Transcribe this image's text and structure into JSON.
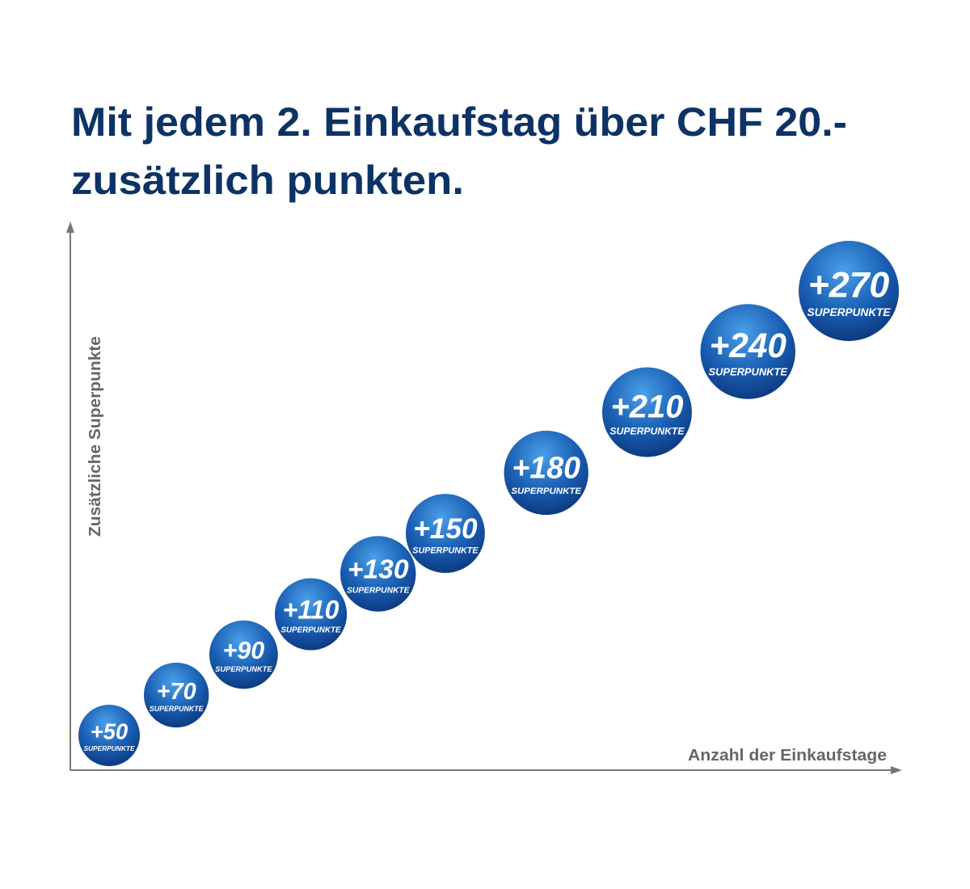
{
  "chart_data": {
    "type": "bubble",
    "title": "Mit jedem 2. Einkaufstag über CHF 20.-",
    "subtitle": "zusätzlich punkten.",
    "y_label": "Zusätzliche Superpunkte",
    "x_label": "Anzahl der Einkaufstage",
    "unit_label": "SUPERPUNKTE",
    "values": [
      50,
      70,
      90,
      110,
      130,
      150,
      180,
      210,
      240,
      270
    ],
    "value_labels": [
      "+50",
      "+70",
      "+90",
      "+110",
      "+130",
      "+150",
      "+180",
      "+210",
      "+240",
      "+270"
    ],
    "color": "#1a5fb4"
  }
}
